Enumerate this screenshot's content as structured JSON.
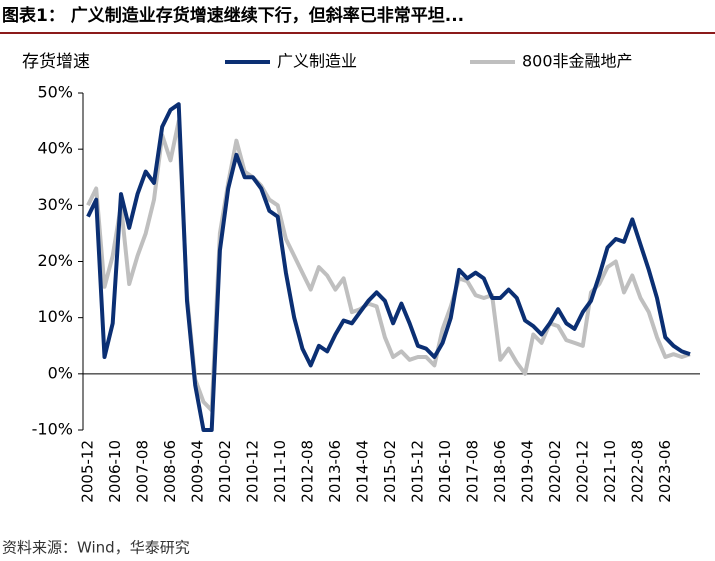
{
  "chart_data": {
    "type": "line",
    "title": "图表1：  广义制造业存货增速继续下行，但斜率已非常平坦...",
    "y_label": "存货增速",
    "source": "资料来源：Wind，华泰研究",
    "x": [
      "2005-12",
      "2006-03",
      "2006-06",
      "2006-09",
      "2006-12",
      "2007-03",
      "2007-06",
      "2007-09",
      "2007-12",
      "2008-03",
      "2008-06",
      "2008-09",
      "2008-12",
      "2009-03",
      "2009-06",
      "2009-09",
      "2009-12",
      "2010-03",
      "2010-06",
      "2010-09",
      "2010-12",
      "2011-03",
      "2011-06",
      "2011-09",
      "2011-12",
      "2012-03",
      "2012-06",
      "2012-09",
      "2012-12",
      "2013-03",
      "2013-06",
      "2013-09",
      "2013-12",
      "2014-03",
      "2014-06",
      "2014-09",
      "2014-12",
      "2015-03",
      "2015-06",
      "2015-09",
      "2015-12",
      "2016-03",
      "2016-06",
      "2016-09",
      "2016-12",
      "2017-03",
      "2017-06",
      "2017-09",
      "2017-12",
      "2018-03",
      "2018-06",
      "2018-09",
      "2018-12",
      "2019-03",
      "2019-06",
      "2019-09",
      "2019-12",
      "2020-03",
      "2020-06",
      "2020-09",
      "2020-12",
      "2021-03",
      "2021-06",
      "2021-09",
      "2021-12",
      "2022-03",
      "2022-06",
      "2022-09",
      "2022-12",
      "2023-03",
      "2023-06",
      "2023-09",
      "2023-12",
      "2024-03"
    ],
    "xticks": [
      "2005-12",
      "2006-10",
      "2007-08",
      "2008-06",
      "2009-04",
      "2010-02",
      "2010-12",
      "2011-10",
      "2012-08",
      "2013-06",
      "2014-04",
      "2015-02",
      "2015-12",
      "2016-10",
      "2017-08",
      "2018-06",
      "2019-04",
      "2020-02",
      "2020-12",
      "2021-10",
      "2022-08",
      "2023-06"
    ],
    "series": [
      {
        "name": "广义制造业",
        "color": "#0b2f73",
        "values": [
          28,
          31,
          3,
          9,
          32,
          26,
          32,
          36,
          34,
          44,
          47,
          48,
          13,
          -2,
          -10,
          -10,
          22,
          33,
          39,
          35,
          35,
          33,
          29,
          28,
          18,
          10,
          4.5,
          1.5,
          5,
          4,
          7,
          9.5,
          9,
          11,
          13,
          14.5,
          13,
          9,
          12.5,
          9,
          5,
          4.5,
          3,
          5.5,
          10,
          18.5,
          17,
          18,
          17,
          13.5,
          13.5,
          15,
          13.5,
          9.5,
          8.5,
          7,
          9,
          11.5,
          9,
          8,
          11,
          13,
          17.5,
          22.5,
          24,
          23.5,
          27.5,
          23,
          18.5,
          13.5,
          6.5,
          5,
          4,
          3.5
        ]
      },
      {
        "name": "800非金融地产",
        "color": "#bfbfbf",
        "values": [
          30,
          33,
          15.5,
          21,
          30,
          16,
          21,
          25,
          31,
          42.5,
          38,
          45,
          14,
          -1,
          -5,
          -6.5,
          25,
          34,
          41.5,
          36,
          35,
          33.5,
          31,
          30,
          24,
          21,
          18,
          15,
          19,
          17.5,
          15,
          17,
          11,
          11.5,
          12.5,
          12,
          6.5,
          3,
          4,
          2.5,
          3,
          3,
          1.5,
          8,
          12,
          17,
          16.5,
          14,
          13.5,
          14,
          2.5,
          4.5,
          2,
          0,
          7,
          5.5,
          9,
          8.5,
          6,
          5.5,
          5,
          14.5,
          16,
          19,
          20,
          14.5,
          17.5,
          13.5,
          11,
          6.5,
          3,
          3.5,
          3,
          3.5
        ]
      }
    ],
    "ylim": [
      -10,
      50
    ],
    "yticks": [
      {
        "value": -10,
        "label": "-10%"
      },
      {
        "value": 0,
        "label": "0%"
      },
      {
        "value": 10,
        "label": "10%"
      },
      {
        "value": 20,
        "label": "20%"
      },
      {
        "value": 30,
        "label": "30%"
      },
      {
        "value": 40,
        "label": "40%"
      },
      {
        "value": 50,
        "label": "50%"
      }
    ]
  }
}
